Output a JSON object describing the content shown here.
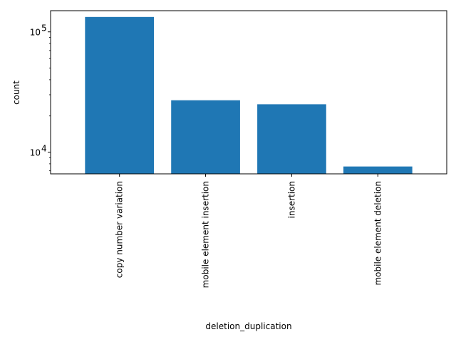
{
  "chart_data": {
    "type": "bar",
    "title": "",
    "xlabel": "deletion_duplication",
    "ylabel": "count",
    "yscale": "log",
    "ylim": [
      6600,
      150000
    ],
    "yticks": [
      {
        "value": 10000,
        "base": "10",
        "exp": "4"
      },
      {
        "value": 100000,
        "base": "10",
        "exp": "5"
      }
    ],
    "categories": [
      "copy number variation",
      "mobile element insertion",
      "insertion",
      "mobile element deletion"
    ],
    "values": [
      133000,
      27000,
      25000,
      7600
    ],
    "bar_color": "#1f77b4",
    "grid": false,
    "legend": "none"
  }
}
